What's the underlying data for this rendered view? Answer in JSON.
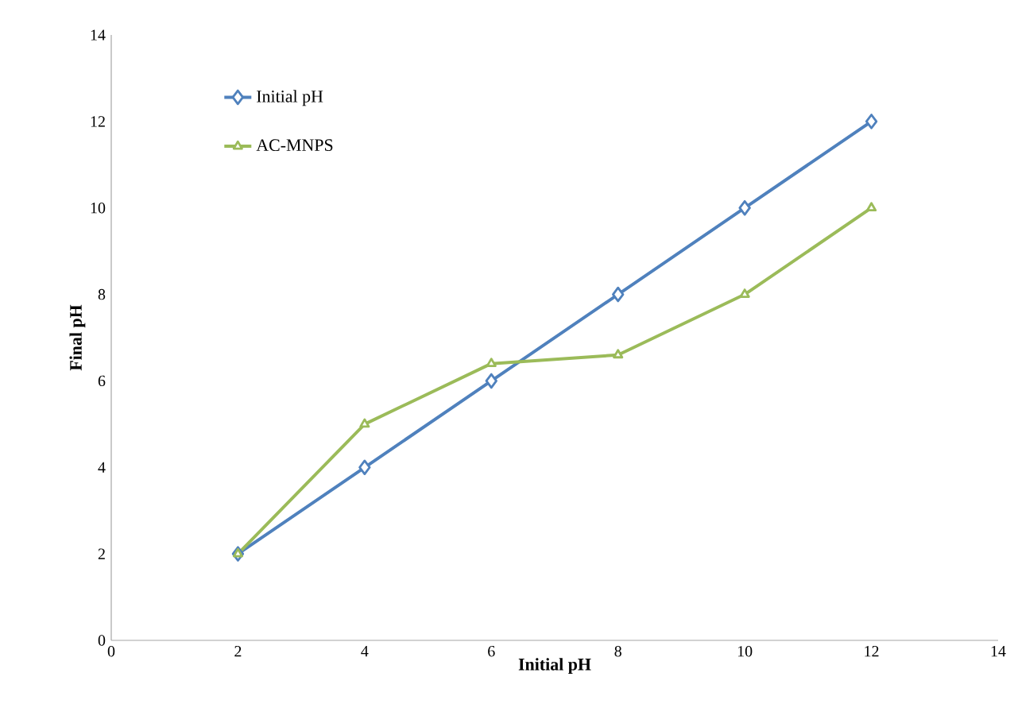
{
  "chart_data": {
    "type": "line",
    "xlabel": "Initial pH",
    "ylabel": "Final pH",
    "x": [
      2,
      4,
      6,
      8,
      10,
      12
    ],
    "series": [
      {
        "name": "Initial pH",
        "color": "#4f81bd",
        "marker": "diamond",
        "values": [
          2,
          4,
          6,
          8,
          10,
          12
        ]
      },
      {
        "name": "AC-MNPS",
        "color": "#9bbb59",
        "marker": "triangle",
        "values": [
          2,
          5,
          6.4,
          6.6,
          8,
          10
        ]
      }
    ],
    "xlim": [
      0,
      14
    ],
    "xticks": [
      0,
      2,
      4,
      6,
      8,
      10,
      12,
      14
    ],
    "ylim": [
      0,
      14
    ],
    "yticks": [
      0,
      2,
      4,
      6,
      8,
      10,
      12,
      14
    ],
    "grid": false,
    "legend": "top left",
    "line_style": "solid"
  }
}
